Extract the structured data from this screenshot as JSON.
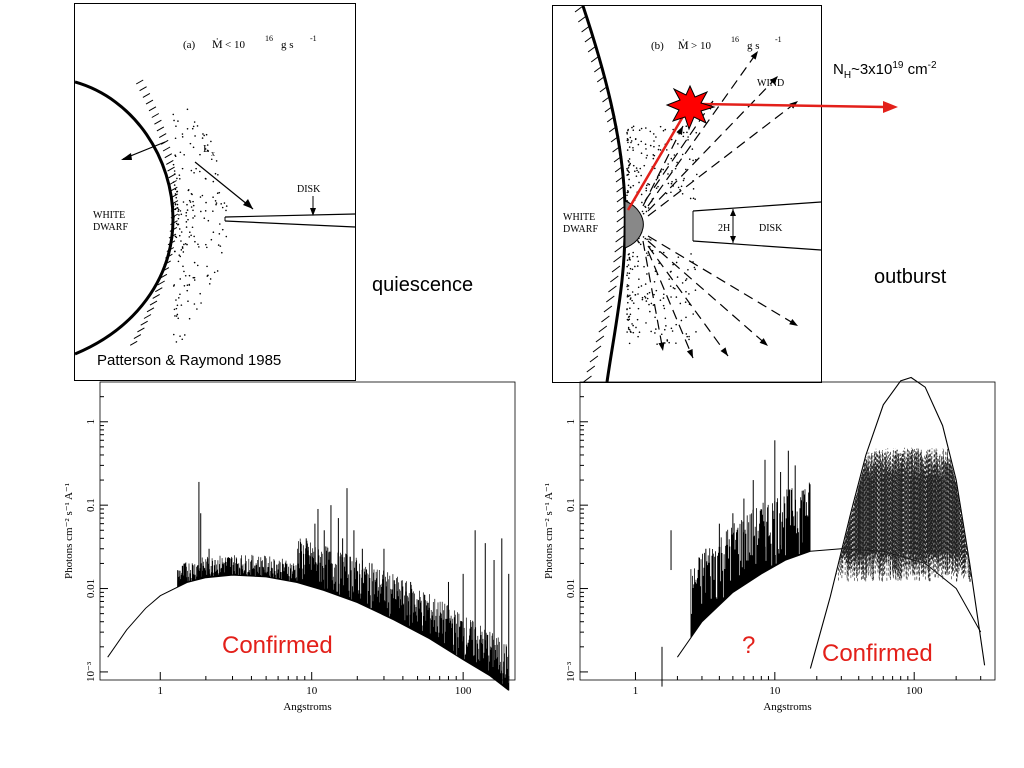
{
  "diagram_a": {
    "title_prefix": "(a)",
    "mdot_symbol": "Ṁ",
    "title_relation": "< 10",
    "title_exp": "16",
    "title_units": "g s",
    "title_units_exp": "-1",
    "star_label_1": "WHITE",
    "star_label_2": "DWARF",
    "lx_label": "L",
    "lx_sub": "x",
    "disk_label": "DISK",
    "credit": "Patterson & Raymond 1985"
  },
  "diagram_b": {
    "title_prefix": "(b)",
    "mdot_symbol": "Ṁ",
    "title_relation": "> 10",
    "title_exp": "16",
    "title_units": "g s",
    "title_units_exp": "-1",
    "star_label_1": "WHITE",
    "star_label_2": "DWARF",
    "wind_label": "WIND",
    "height_label": "2H",
    "disk_label": "DISK"
  },
  "nh_note": {
    "base": "N",
    "sub": "H",
    "mid": "~3x10",
    "exp": "19",
    "unit": " cm",
    "unit_exp": "-2"
  },
  "labels": {
    "quiescence": "quiescence",
    "outburst": "outburst",
    "confirmed_left": "Confirmed",
    "question": "?",
    "confirmed_right": "Confirmed"
  },
  "colors": {
    "annotation_red": "#e3201a",
    "line": "#000000"
  },
  "chart_data": [
    {
      "type": "line",
      "panel": "quiescence",
      "xlabel": "Angstroms",
      "ylabel": "Photons cm⁻² s⁻¹ A⁻¹",
      "xscale": "log",
      "yscale": "log",
      "xlim": [
        0.4,
        220
      ],
      "ylim": [
        0.0008,
        3
      ],
      "x_ticks": [
        1,
        10,
        100
      ],
      "x_tick_labels": [
        "1",
        "10",
        "100"
      ],
      "y_ticks": [
        0.001,
        0.01,
        0.1,
        1
      ],
      "y_tick_labels": [
        "10⁻³",
        "0.01",
        "0.1",
        "1"
      ],
      "continuum": [
        [
          0.45,
          0.0015
        ],
        [
          0.6,
          0.0032
        ],
        [
          0.8,
          0.0058
        ],
        [
          1.0,
          0.0082
        ],
        [
          1.5,
          0.0118
        ],
        [
          2.0,
          0.0135
        ],
        [
          3.0,
          0.0145
        ],
        [
          5.0,
          0.0138
        ],
        [
          8.0,
          0.0118
        ],
        [
          12.0,
          0.0095
        ],
        [
          20.0,
          0.0068
        ],
        [
          35.0,
          0.0042
        ],
        [
          60.0,
          0.0025
        ],
        [
          100.0,
          0.0014
        ],
        [
          150.0,
          0.0009
        ],
        [
          200.0,
          0.0006
        ]
      ],
      "lines": [
        [
          1.35,
          0.014
        ],
        [
          1.45,
          0.02
        ],
        [
          1.8,
          0.19
        ],
        [
          1.85,
          0.08
        ],
        [
          2.1,
          0.03
        ],
        [
          2.3,
          0.022
        ],
        [
          4.8,
          0.018
        ],
        [
          6.7,
          0.02
        ],
        [
          8.5,
          0.028
        ],
        [
          9.2,
          0.04
        ],
        [
          10.5,
          0.06
        ],
        [
          11.0,
          0.09
        ],
        [
          12.1,
          0.05
        ],
        [
          13.4,
          0.1
        ],
        [
          15.0,
          0.07
        ],
        [
          16.0,
          0.04
        ],
        [
          17.1,
          0.16
        ],
        [
          19.0,
          0.05
        ],
        [
          21.6,
          0.03
        ],
        [
          25.0,
          0.02
        ],
        [
          30.0,
          0.03
        ],
        [
          45.0,
          0.012
        ],
        [
          80.0,
          0.012
        ],
        [
          100.0,
          0.015
        ],
        [
          120.0,
          0.05
        ],
        [
          140.0,
          0.035
        ],
        [
          160.0,
          0.022
        ],
        [
          180.0,
          0.04
        ],
        [
          200.0,
          0.015
        ]
      ]
    },
    {
      "type": "line",
      "panel": "outburst",
      "xlabel": "Angstroms",
      "ylabel": "Photons cm⁻² s⁻¹ A⁻¹",
      "xscale": "log",
      "yscale": "log",
      "xlim": [
        0.4,
        380
      ],
      "ylim": [
        0.0008,
        3
      ],
      "x_ticks": [
        1,
        10,
        100
      ],
      "x_tick_labels": [
        "1",
        "10",
        "100"
      ],
      "y_ticks": [
        0.001,
        0.01,
        0.1,
        1
      ],
      "y_tick_labels": [
        "10⁻³",
        "0.01",
        "0.1",
        "1"
      ],
      "hard_continuum": [
        [
          2.0,
          0.0015
        ],
        [
          3.0,
          0.004
        ],
        [
          5.0,
          0.009
        ],
        [
          8.0,
          0.015
        ],
        [
          12.0,
          0.022
        ],
        [
          18.0,
          0.028
        ],
        [
          30.0,
          0.03
        ],
        [
          60.0,
          0.028
        ],
        [
          120.0,
          0.02
        ],
        [
          200.0,
          0.01
        ],
        [
          300.0,
          0.003
        ]
      ],
      "blackbody": [
        [
          18.0,
          0.0011
        ],
        [
          25.0,
          0.008
        ],
        [
          35.0,
          0.08
        ],
        [
          45.0,
          0.4
        ],
        [
          60.0,
          1.6
        ],
        [
          80.0,
          3.1
        ],
        [
          95.0,
          3.4
        ],
        [
          120.0,
          2.6
        ],
        [
          160.0,
          0.9
        ],
        [
          200.0,
          0.2
        ],
        [
          250.0,
          0.02
        ],
        [
          320.0,
          0.0012
        ]
      ],
      "lines": [
        [
          1.55,
          0.002
        ],
        [
          1.8,
          0.05
        ],
        [
          3.2,
          0.03
        ],
        [
          4.0,
          0.06
        ],
        [
          5.0,
          0.08
        ],
        [
          6.0,
          0.12
        ],
        [
          7.0,
          0.2
        ],
        [
          8.5,
          0.35
        ],
        [
          10.0,
          0.6
        ],
        [
          11.0,
          0.25
        ],
        [
          12.5,
          0.45
        ],
        [
          14.0,
          0.3
        ],
        [
          16.0,
          0.15
        ]
      ],
      "wind_absorbed_range": [
        20.0,
        300.0
      ],
      "wind_absorbed_level": [
        0.02,
        0.35
      ]
    }
  ]
}
